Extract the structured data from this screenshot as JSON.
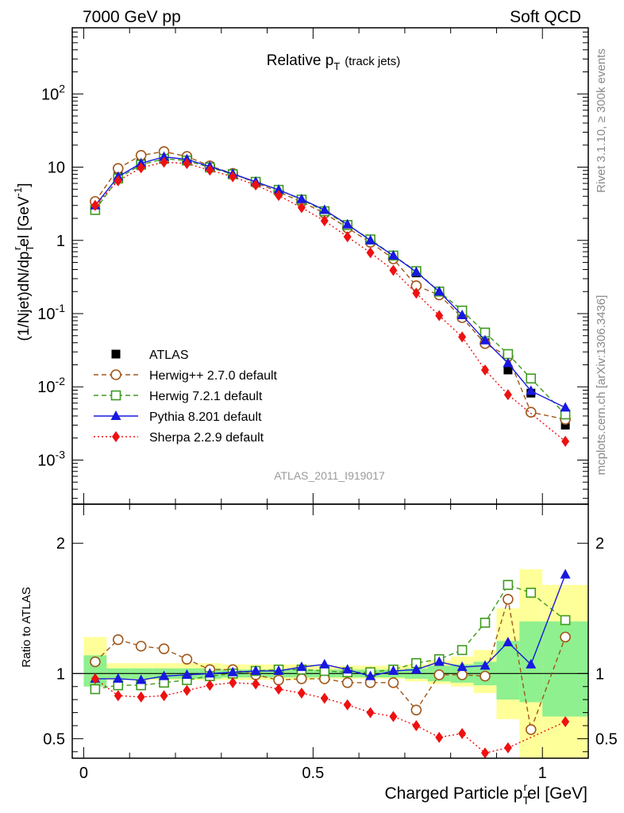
{
  "header": {
    "left": "7000 GeV pp",
    "right": "Soft QCD"
  },
  "side_labels": {
    "rivet": "Rivet 3.1.10, ≥ 300k events",
    "mcplots": "mcplots.cern.ch [arXiv:1306.3436]"
  },
  "analysis_id": "ATLAS_2011_I919017",
  "colors": {
    "atlas": "#000000",
    "herwigpp": "#a0571b",
    "herwig7": "#3d9a1d",
    "pythia": "#1818e0",
    "sherpa": "#ee1111",
    "band_green": "#8ef08e",
    "band_yellow": "#ffff99"
  },
  "chart_data": [
    {
      "type": "line",
      "panel": "main",
      "title": "Relative p_T (track jets)",
      "title_parts": {
        "main": "Relative p",
        "sub": "T",
        "suffix": "(track jets)"
      },
      "ylabel": "(1/Njet)dN/dp_T^r el [GeV^-1]",
      "ylabel_parts": {
        "a": "(1/Njet)dN/dp",
        "sub": "T",
        "sup": "r",
        "b": "el [GeV",
        "sup2": "-1",
        "c": "]"
      },
      "yscale": "log",
      "xlim": [
        -0.025,
        1.1
      ],
      "ylim": [
        0.00025,
        800
      ],
      "x": [
        0.025,
        0.075,
        0.125,
        0.175,
        0.225,
        0.275,
        0.325,
        0.375,
        0.425,
        0.475,
        0.525,
        0.575,
        0.625,
        0.675,
        0.725,
        0.775,
        0.825,
        0.875,
        0.925,
        0.975,
        1.05
      ],
      "y_tick_labels": [
        "10^-3",
        "10^-2",
        "10^-1",
        "1",
        "10",
        "10^2"
      ],
      "legend_placement": "lower-left",
      "series": [
        {
          "name": "ATLAS",
          "marker": "square",
          "values": [
            3.2,
            7.8,
            12.0,
            14.0,
            13.0,
            10.2,
            8.0,
            6.2,
            4.8,
            3.5,
            2.45,
            1.6,
            1.02,
            0.6,
            0.36,
            0.19,
            0.09,
            0.04,
            0.017,
            0.0082,
            0.003
          ]
        },
        {
          "name": "Herwig++ 2.7.0 default",
          "marker": "open-circle",
          "dash": "dashed",
          "values": [
            3.4,
            9.6,
            14.5,
            16.3,
            14.0,
            10.4,
            8.2,
            6.1,
            4.6,
            3.35,
            2.35,
            1.48,
            0.94,
            0.56,
            0.24,
            0.18,
            0.088,
            0.039,
            0.026,
            0.0045,
            0.0036
          ]
        },
        {
          "name": "Herwig 7.2.1 default",
          "marker": "open-square",
          "dash": "dashed",
          "values": [
            2.6,
            7.0,
            10.8,
            13.0,
            12.3,
            9.9,
            8.0,
            6.3,
            4.9,
            3.6,
            2.5,
            1.62,
            1.03,
            0.62,
            0.38,
            0.2,
            0.11,
            0.055,
            0.028,
            0.013,
            0.0042
          ]
        },
        {
          "name": "Pythia 8.201 default",
          "marker": "triangle",
          "dash": "solid",
          "values": [
            3.0,
            7.4,
            11.3,
            13.8,
            12.8,
            10.2,
            8.1,
            6.3,
            4.9,
            3.65,
            2.6,
            1.65,
            1.0,
            0.62,
            0.37,
            0.2,
            0.095,
            0.043,
            0.021,
            0.0088,
            0.0052
          ]
        },
        {
          "name": "Sherpa 2.2.9 default",
          "marker": "diamond",
          "dash": "dotted",
          "values": [
            3.0,
            6.5,
            9.8,
            11.7,
            11.2,
            9.1,
            7.4,
            5.7,
            4.1,
            2.8,
            1.85,
            1.12,
            0.68,
            0.39,
            0.19,
            0.094,
            0.048,
            0.017,
            0.0078,
            null,
            0.0018
          ]
        }
      ]
    },
    {
      "type": "line",
      "panel": "ratio",
      "xlabel": "Charged Particle p_T^r el [GeV]",
      "xlabel_parts": {
        "a": "Charged Particle p",
        "sub": "T",
        "sup": "r",
        "b": "el [GeV]"
      },
      "ylabel": "Ratio to ATLAS",
      "xlim": [
        -0.025,
        1.1
      ],
      "ylim": [
        0.35,
        2.3
      ],
      "x_tick_labels": [
        "0",
        "0.5",
        "1"
      ],
      "y_tick_labels": [
        "0.5",
        "1",
        "2"
      ],
      "x": [
        0.025,
        0.075,
        0.125,
        0.175,
        0.225,
        0.275,
        0.325,
        0.375,
        0.425,
        0.475,
        0.525,
        0.575,
        0.625,
        0.675,
        0.725,
        0.775,
        0.825,
        0.875,
        0.925,
        0.975,
        1.05
      ],
      "bands": {
        "edges": [
          0.0,
          0.05,
          0.1,
          0.15,
          0.2,
          0.25,
          0.3,
          0.35,
          0.4,
          0.45,
          0.5,
          0.55,
          0.6,
          0.65,
          0.7,
          0.75,
          0.8,
          0.85,
          0.9,
          0.95,
          1.0,
          1.1
        ],
        "green": [
          [
            0.9,
            1.14
          ],
          [
            0.96,
            1.04
          ],
          [
            0.96,
            1.04
          ],
          [
            0.96,
            1.04
          ],
          [
            0.96,
            1.04
          ],
          [
            0.96,
            1.04
          ],
          [
            0.97,
            1.03
          ],
          [
            0.97,
            1.03
          ],
          [
            0.97,
            1.03
          ],
          [
            0.97,
            1.03
          ],
          [
            0.97,
            1.03
          ],
          [
            0.97,
            1.03
          ],
          [
            0.97,
            1.03
          ],
          [
            0.97,
            1.03
          ],
          [
            0.96,
            1.04
          ],
          [
            0.94,
            1.06
          ],
          [
            0.93,
            1.07
          ],
          [
            0.91,
            1.09
          ],
          [
            0.8,
            1.25
          ],
          [
            0.78,
            1.4
          ],
          [
            0.67,
            1.4
          ]
        ],
        "yellow": [
          [
            0.92,
            1.28
          ],
          [
            0.95,
            1.08
          ],
          [
            0.95,
            1.08
          ],
          [
            0.95,
            1.08
          ],
          [
            0.95,
            1.08
          ],
          [
            0.95,
            1.08
          ],
          [
            0.95,
            1.07
          ],
          [
            0.95,
            1.07
          ],
          [
            0.95,
            1.07
          ],
          [
            0.95,
            1.07
          ],
          [
            0.96,
            1.06
          ],
          [
            0.96,
            1.06
          ],
          [
            0.96,
            1.06
          ],
          [
            0.96,
            1.06
          ],
          [
            0.94,
            1.07
          ],
          [
            0.92,
            1.1
          ],
          [
            0.9,
            1.13
          ],
          [
            0.85,
            1.18
          ],
          [
            0.65,
            1.5
          ],
          [
            0.35,
            1.8
          ],
          [
            0.35,
            1.68
          ]
        ]
      },
      "series": [
        {
          "name": "Herwig++ 2.7.0 default",
          "values": [
            1.09,
            1.26,
            1.21,
            1.19,
            1.11,
            1.03,
            1.03,
            0.99,
            0.95,
            0.96,
            0.96,
            0.93,
            0.93,
            0.93,
            0.72,
            0.99,
            0.99,
            0.98,
            1.57,
            0.57,
            1.28
          ]
        },
        {
          "name": "Herwig 7.2.1 default",
          "values": [
            0.88,
            0.91,
            0.91,
            0.93,
            0.95,
            0.98,
            1.0,
            1.02,
            1.03,
            1.03,
            1.02,
            1.01,
            1.01,
            1.03,
            1.08,
            1.11,
            1.18,
            1.39,
            1.68,
            1.62,
            1.41
          ]
        },
        {
          "name": "Pythia 8.201 default",
          "values": [
            0.96,
            0.96,
            0.95,
            0.98,
            0.99,
            1.0,
            1.01,
            1.02,
            1.02,
            1.05,
            1.07,
            1.03,
            0.98,
            1.02,
            1.03,
            1.09,
            1.05,
            1.06,
            1.24,
            1.07,
            1.76
          ]
        },
        {
          "name": "Sherpa 2.2.9 default",
          "values": [
            0.96,
            0.83,
            0.82,
            0.83,
            0.87,
            0.91,
            0.93,
            0.92,
            0.88,
            0.85,
            0.81,
            0.76,
            0.7,
            0.67,
            0.6,
            0.51,
            0.54,
            0.39,
            0.43,
            null,
            0.63
          ]
        }
      ]
    }
  ]
}
